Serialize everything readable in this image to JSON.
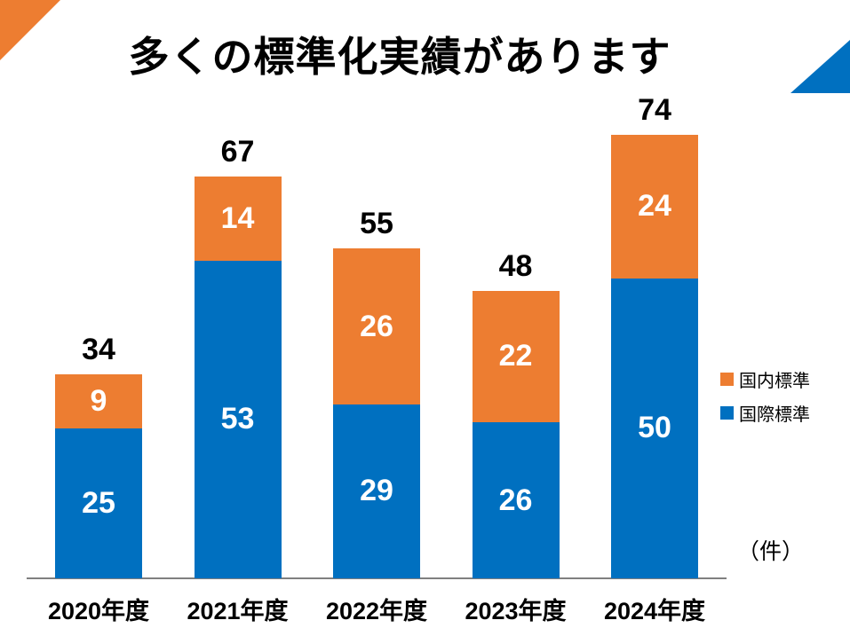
{
  "title": "多くの標準化実績があります",
  "unit_label": "（件）",
  "legend": {
    "items": [
      {
        "label": "国内標準",
        "color": "#ED7D31"
      },
      {
        "label": "国際標準",
        "color": "#0070C0"
      }
    ]
  },
  "decorations": {
    "top_left_triangle_color": "#ED7D31",
    "top_right_triangle_color": "#0070C0",
    "axis_line_color": "#808080"
  },
  "chart_data": {
    "type": "bar",
    "stacked": true,
    "title": "多くの標準化実績があります",
    "unit": "件",
    "categories": [
      "2020年度",
      "2021年度",
      "2022年度",
      "2023年度",
      "2024年度"
    ],
    "series": [
      {
        "name": "国際標準",
        "color": "#0070C0",
        "values": [
          25,
          53,
          29,
          26,
          50
        ]
      },
      {
        "name": "国内標準",
        "color": "#ED7D31",
        "values": [
          9,
          14,
          26,
          22,
          24
        ]
      }
    ],
    "totals": [
      34,
      67,
      55,
      48,
      74
    ],
    "ylim": [
      0,
      74
    ],
    "grid": false,
    "legend_position": "right",
    "value_labels": "inside-segments-and-total-above"
  }
}
